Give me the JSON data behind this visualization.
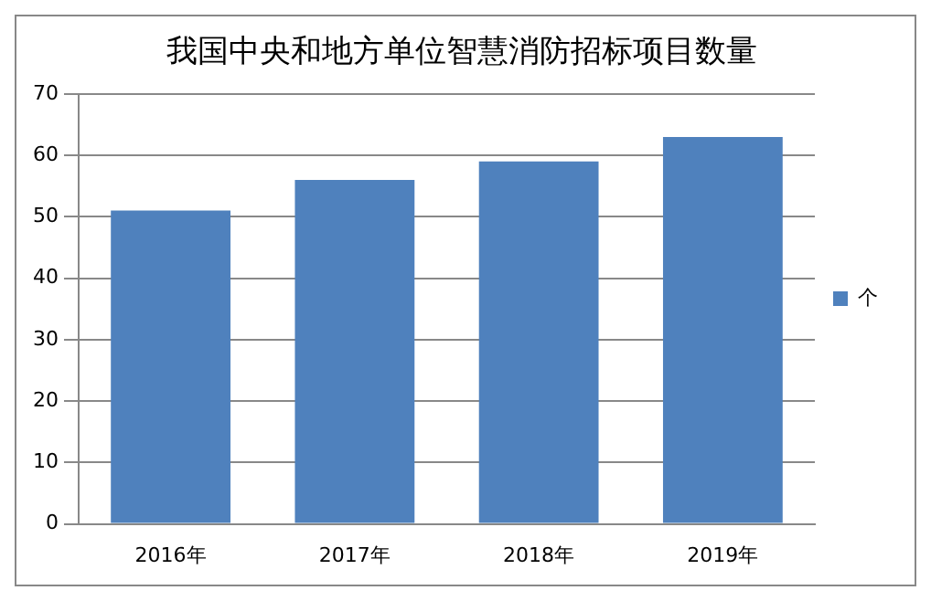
{
  "chart_data": {
    "type": "bar",
    "title": "我国中央和地方单位智慧消防招标项目数量",
    "categories": [
      "2016年",
      "2017年",
      "2018年",
      "2019年"
    ],
    "series": [
      {
        "name": "个",
        "color": "#4f81bd",
        "values": [
          51,
          56,
          59,
          63
        ]
      }
    ],
    "ylim": [
      0,
      70
    ],
    "yticks": [
      0,
      10,
      20,
      30,
      40,
      50,
      60,
      70
    ],
    "grid": "y",
    "legend": "right"
  }
}
